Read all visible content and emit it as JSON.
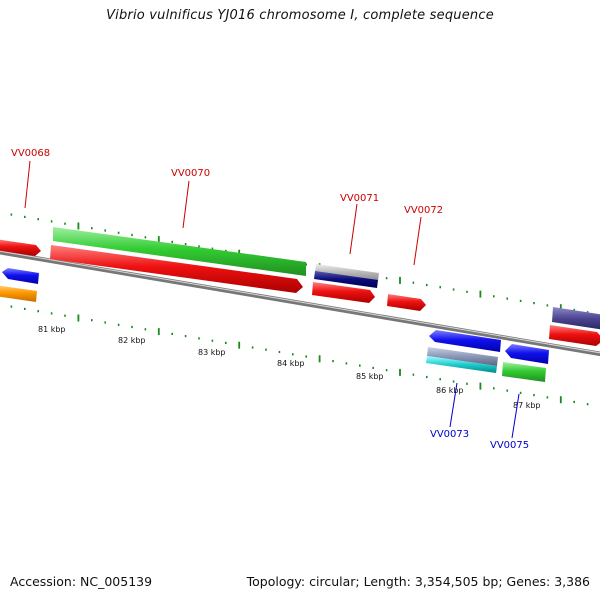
{
  "title": "Vibrio vulnificus YJ016 chromosome I, complete sequence",
  "footer": {
    "accession": "Accession: NC_005139",
    "topology": "Topology: circular; Length: 3,354,505 bp; Genes: 3,386"
  },
  "colors": {
    "backbone": "#888888",
    "tick": "#1a8a1a",
    "label_forward": "#cc0000",
    "label_reverse": "#0000cc"
  },
  "kbp_labels": [
    "81 kbp",
    "82 kbp",
    "83 kbp",
    "84 kbp",
    "85 kbp",
    "86 kbp",
    "87 kbp"
  ],
  "gene_labels": [
    {
      "text": "VV0068",
      "color": "#cc0000"
    },
    {
      "text": "VV0070",
      "color": "#cc0000"
    },
    {
      "text": "VV0071",
      "color": "#cc0000"
    },
    {
      "text": "VV0072",
      "color": "#cc0000"
    },
    {
      "text": "VV0073",
      "color": "#0000cc"
    },
    {
      "text": "VV0075",
      "color": "#0000cc"
    }
  ]
}
